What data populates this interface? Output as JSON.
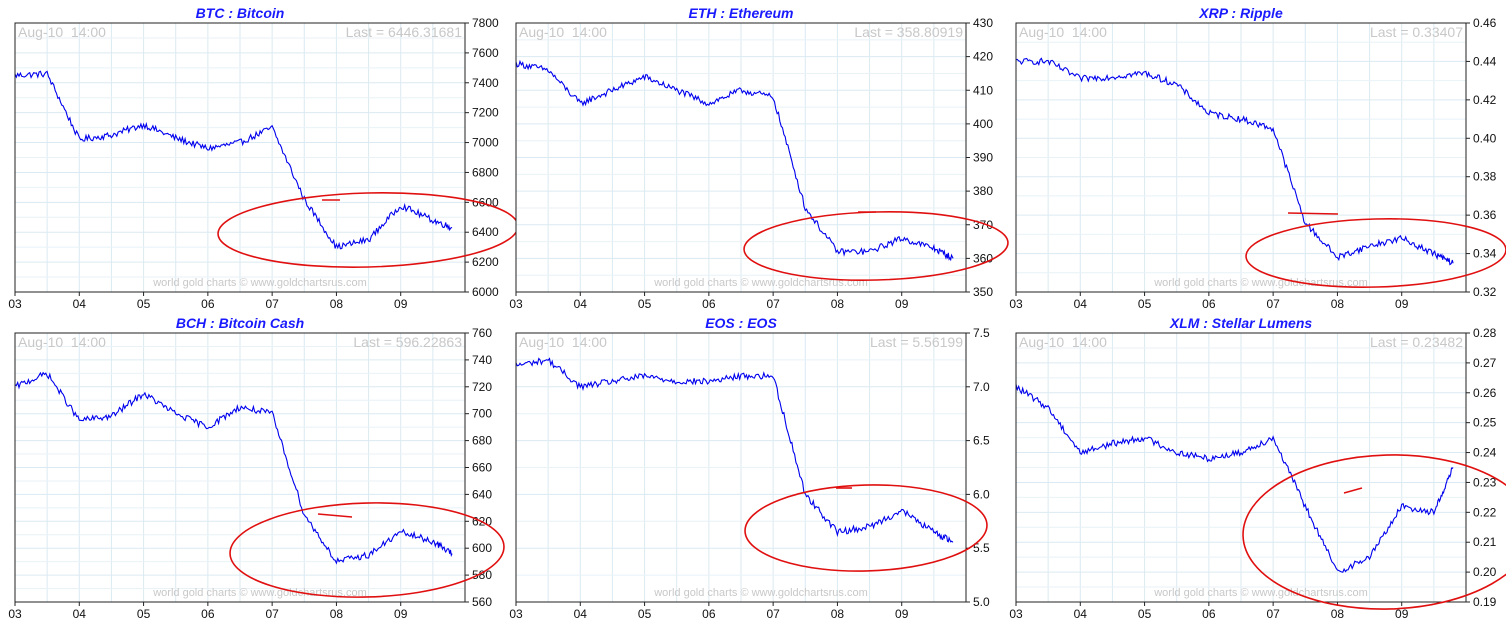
{
  "chart_data": [
    {
      "type": "line",
      "title": "BTC : Bitcoin",
      "timestamp": "Aug-10  14:00",
      "last_label": "Last = 6446.31681",
      "watermark": "world gold charts © www.goldchartsrus.com",
      "x_ticks": [
        "03",
        "04",
        "05",
        "06",
        "07",
        "08",
        "09"
      ],
      "y_ticks": [
        "6000",
        "6200",
        "6400",
        "6600",
        "6800",
        "7000",
        "7200",
        "7400",
        "7600",
        "7800"
      ],
      "ylim": [
        6000,
        7800
      ],
      "series": [
        {
          "color": "#0000ee",
          "x": [
            "03",
            "03.5",
            "04",
            "04.5",
            "05",
            "05.5",
            "06",
            "06.5",
            "07",
            "07.5",
            "08",
            "08.5",
            "09",
            "09.5",
            "09.8"
          ],
          "values": [
            7450,
            7460,
            7020,
            7050,
            7120,
            7030,
            6960,
            7000,
            7100,
            6620,
            6300,
            6350,
            6580,
            6480,
            6430
          ]
        }
      ]
    },
    {
      "type": "line",
      "title": "ETH : Ethereum",
      "timestamp": "Aug-10  14:00",
      "last_label": "Last = 358.80919",
      "watermark": "world gold charts © www.goldchartsrus.com",
      "x_ticks": [
        "03",
        "04",
        "05",
        "06",
        "07",
        "08",
        "09"
      ],
      "y_ticks": [
        "350",
        "360",
        "370",
        "380",
        "390",
        "400",
        "410",
        "420",
        "430"
      ],
      "ylim": [
        350,
        430
      ],
      "series": [
        {
          "color": "#0000ee",
          "x": [
            "03",
            "03.5",
            "04",
            "04.5",
            "05",
            "05.5",
            "06",
            "06.5",
            "07",
            "07.5",
            "08",
            "08.5",
            "09",
            "09.5",
            "09.8"
          ],
          "values": [
            418,
            416,
            406,
            410,
            414,
            410,
            406,
            410,
            408,
            375,
            362,
            362,
            366,
            363,
            360
          ]
        }
      ]
    },
    {
      "type": "line",
      "title": "XRP : Ripple",
      "timestamp": "Aug-10  14:00",
      "last_label": "Last = 0.33407",
      "watermark": "world gold charts © www.goldchartsrus.com",
      "x_ticks": [
        "03",
        "04",
        "05",
        "06",
        "07",
        "08",
        "09"
      ],
      "y_ticks": [
        "0.32",
        "0.34",
        "0.36",
        "0.38",
        "0.40",
        "0.42",
        "0.44",
        "0.46"
      ],
      "ylim": [
        0.32,
        0.46
      ],
      "series": [
        {
          "color": "#0000ee",
          "x": [
            "03",
            "03.5",
            "04",
            "04.5",
            "05",
            "05.5",
            "06",
            "06.5",
            "07",
            "07.5",
            "08",
            "08.5",
            "09",
            "09.5",
            "09.8"
          ],
          "values": [
            0.44,
            0.44,
            0.431,
            0.432,
            0.434,
            0.428,
            0.413,
            0.41,
            0.405,
            0.356,
            0.338,
            0.344,
            0.348,
            0.34,
            0.335
          ]
        }
      ]
    },
    {
      "type": "line",
      "title": "BCH : Bitcoin Cash",
      "timestamp": "Aug-10  14:00",
      "last_label": "Last = 596.22863",
      "watermark": "world gold charts © www.goldchartsrus.com",
      "x_ticks": [
        "03",
        "04",
        "05",
        "06",
        "07",
        "08",
        "09"
      ],
      "y_ticks": [
        "560",
        "580",
        "600",
        "620",
        "640",
        "660",
        "680",
        "700",
        "720",
        "740",
        "760"
      ],
      "ylim": [
        560,
        760
      ],
      "series": [
        {
          "color": "#0000ee",
          "x": [
            "03",
            "03.5",
            "04",
            "04.5",
            "05",
            "05.5",
            "06",
            "06.5",
            "07",
            "07.5",
            "08",
            "08.5",
            "09",
            "09.5",
            "09.8"
          ],
          "values": [
            720,
            730,
            695,
            698,
            715,
            700,
            690,
            705,
            700,
            625,
            590,
            595,
            612,
            605,
            596
          ]
        }
      ]
    },
    {
      "type": "line",
      "title": "EOS : EOS",
      "timestamp": "Aug-10  14:00",
      "last_label": "Last = 5.56199",
      "watermark": "world gold charts © www.goldchartsrus.com",
      "x_ticks": [
        "03",
        "04",
        "05",
        "06",
        "07",
        "08",
        "09"
      ],
      "y_ticks": [
        "5.0",
        "5.5",
        "6.0",
        "6.5",
        "7.0",
        "7.5"
      ],
      "ylim": [
        5.0,
        7.5
      ],
      "series": [
        {
          "color": "#0000ee",
          "x": [
            "03",
            "03.5",
            "04",
            "04.5",
            "05",
            "05.5",
            "06",
            "06.5",
            "07",
            "07.5",
            "08",
            "08.5",
            "09",
            "09.5",
            "09.8"
          ],
          "values": [
            7.2,
            7.25,
            7.0,
            7.05,
            7.1,
            7.05,
            7.05,
            7.1,
            7.1,
            6.0,
            5.65,
            5.7,
            5.85,
            5.65,
            5.56
          ]
        }
      ]
    },
    {
      "type": "line",
      "title": "XLM : Stellar Lumens",
      "timestamp": "Aug-10  14:00",
      "last_label": "Last = 0.23482",
      "watermark": "world gold charts © www.goldchartsrus.com",
      "x_ticks": [
        "03",
        "04",
        "05",
        "06",
        "07",
        "08",
        "09"
      ],
      "y_ticks": [
        "0.19",
        "0.20",
        "0.21",
        "0.22",
        "0.23",
        "0.24",
        "0.25",
        "0.26",
        "0.27",
        "0.28"
      ],
      "ylim": [
        0.19,
        0.28
      ],
      "series": [
        {
          "color": "#0000ee",
          "x": [
            "03",
            "03.5",
            "04",
            "04.5",
            "05",
            "05.5",
            "06",
            "06.5",
            "07",
            "07.5",
            "08",
            "08.5",
            "09",
            "09.5",
            "09.8"
          ],
          "values": [
            0.262,
            0.255,
            0.24,
            0.243,
            0.245,
            0.24,
            0.238,
            0.24,
            0.245,
            0.222,
            0.2,
            0.205,
            0.222,
            0.22,
            0.235
          ]
        }
      ]
    }
  ]
}
